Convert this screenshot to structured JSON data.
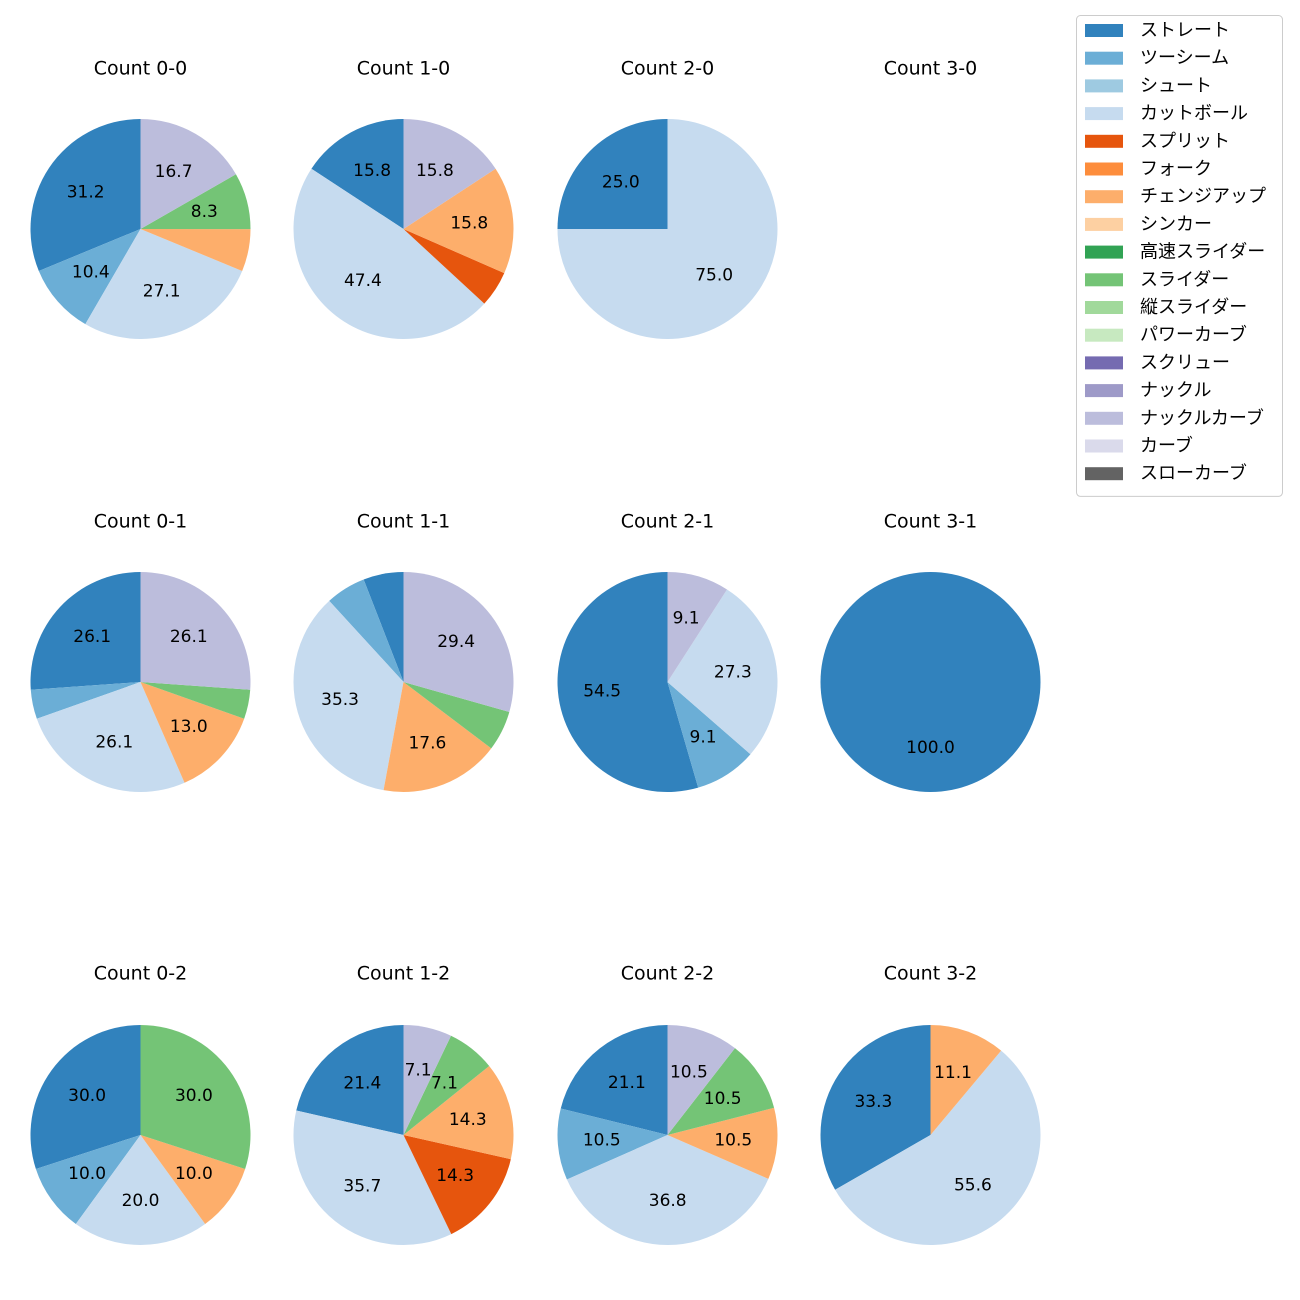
{
  "chart_data": {
    "type": "pie",
    "pitch_types": [
      "ストレート",
      "ツーシーム",
      "シュート",
      "カットボール",
      "スプリット",
      "フォーク",
      "チェンジアップ",
      "シンカー",
      "高速スライダー",
      "スライダー",
      "縦スライダー",
      "パワーカーブ",
      "スクリュー",
      "ナックル",
      "ナックルカーブ",
      "カーブ",
      "スローカーブ"
    ],
    "colors": [
      "#3182bd",
      "#6baed6",
      "#9ecae1",
      "#c6dbef",
      "#e6550d",
      "#fd8d3c",
      "#fdae6b",
      "#fdd0a2",
      "#31a354",
      "#74c476",
      "#a1d99b",
      "#c7e9c0",
      "#756bb1",
      "#9e9ac8",
      "#bcbddc",
      "#dadaeb",
      "#636363"
    ],
    "legend_position": "top-right",
    "label_threshold": 7,
    "charts": [
      {
        "title": "Count 0-0",
        "values": [
          31.2,
          10.4,
          0,
          27.1,
          0,
          0,
          6.2,
          0,
          0,
          8.3,
          0,
          0,
          0,
          0,
          16.7,
          0,
          0
        ]
      },
      {
        "title": "Count 1-0",
        "values": [
          15.8,
          0,
          0,
          47.4,
          5.3,
          0,
          15.8,
          0,
          0,
          0,
          0,
          0,
          0,
          0,
          15.8,
          0,
          0
        ]
      },
      {
        "title": "Count 2-0",
        "values": [
          25.0,
          0,
          0,
          75.0,
          0,
          0,
          0,
          0,
          0,
          0,
          0,
          0,
          0,
          0,
          0,
          0,
          0
        ]
      },
      {
        "title": "Count 3-0",
        "values": []
      },
      {
        "title": "Count 0-1",
        "values": [
          26.1,
          4.3,
          0,
          26.1,
          0,
          0,
          13.0,
          0,
          0,
          4.3,
          0,
          0,
          0,
          0,
          26.1,
          0,
          0
        ]
      },
      {
        "title": "Count 1-1",
        "values": [
          5.9,
          5.9,
          0,
          35.3,
          0,
          0,
          17.6,
          0,
          0,
          5.9,
          0,
          0,
          0,
          0,
          29.4,
          0,
          0
        ]
      },
      {
        "title": "Count 2-1",
        "values": [
          54.5,
          9.1,
          0,
          27.3,
          0,
          0,
          0,
          0,
          0,
          0,
          0,
          0,
          0,
          0,
          9.1,
          0,
          0
        ]
      },
      {
        "title": "Count 3-1",
        "values": [
          100.0,
          0,
          0,
          0,
          0,
          0,
          0,
          0,
          0,
          0,
          0,
          0,
          0,
          0,
          0,
          0,
          0
        ]
      },
      {
        "title": "Count 0-2",
        "values": [
          30.0,
          10.0,
          0,
          20.0,
          0,
          0,
          10.0,
          0,
          0,
          30.0,
          0,
          0,
          0,
          0,
          0,
          0,
          0
        ]
      },
      {
        "title": "Count 1-2",
        "values": [
          21.4,
          0,
          0,
          35.7,
          14.3,
          0,
          14.3,
          0,
          0,
          7.1,
          0,
          0,
          0,
          0,
          7.1,
          0,
          0
        ]
      },
      {
        "title": "Count 2-2",
        "values": [
          21.1,
          10.5,
          0,
          36.8,
          0,
          0,
          10.5,
          0,
          0,
          10.5,
          0,
          0,
          0,
          0,
          10.5,
          0,
          0
        ]
      },
      {
        "title": "Count 3-2",
        "values": [
          33.3,
          0,
          0,
          55.6,
          0,
          0,
          11.1,
          0,
          0,
          0,
          0,
          0,
          0,
          0,
          0,
          0,
          0
        ]
      }
    ]
  }
}
